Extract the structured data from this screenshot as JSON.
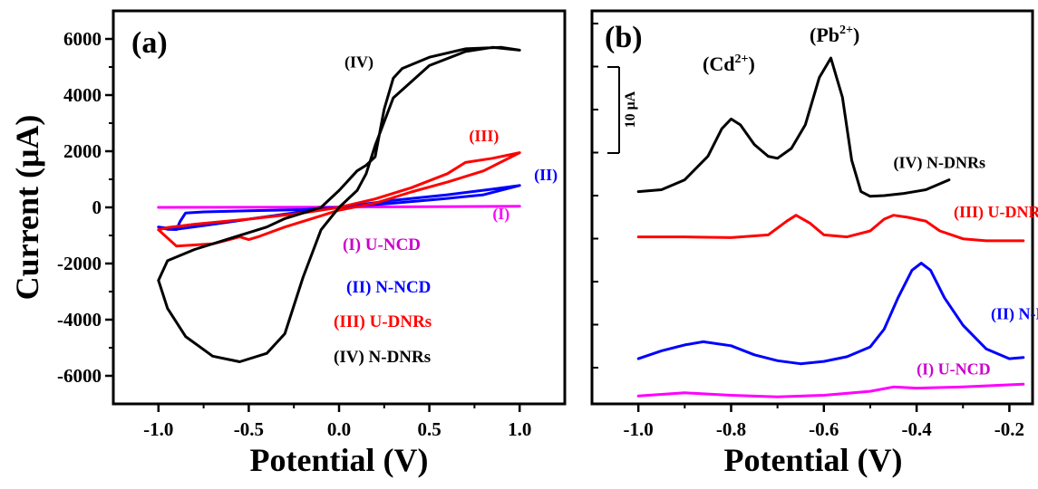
{
  "chart_data": [
    {
      "panel": "(a)",
      "type": "line",
      "xlabel": "Potential (V)",
      "ylabel": "Current (μA)",
      "xlim": [
        -1.25,
        1.25
      ],
      "ylim": [
        -7000,
        7000
      ],
      "xticks": [
        -1.0,
        -0.5,
        0.0,
        0.5,
        1.0
      ],
      "xtick_labels": [
        "-1.0",
        "-0.5",
        "0.0",
        "0.5",
        "1.0"
      ],
      "yticks": [
        -6000,
        -4000,
        -2000,
        0,
        2000,
        4000,
        6000
      ],
      "ytick_labels": [
        "-6000",
        "-4000",
        "-2000",
        "0",
        "2000",
        "4000",
        "6000"
      ],
      "grid": false,
      "legend_position": "bottom-right",
      "series": [
        {
          "name": "(I) U-NCD",
          "color": "#ff00ff",
          "x": [
            -1.0,
            0.0,
            1.0
          ],
          "y": [
            0,
            10,
            40
          ]
        },
        {
          "name": "(II) N-NCD",
          "color": "#0000ff",
          "x": [
            -1.0,
            -0.95,
            -0.9,
            -0.88,
            -0.85,
            -0.75,
            -0.5,
            -0.2,
            0.0,
            0.3,
            0.6,
            0.8,
            1.0,
            0.85,
            0.6,
            0.3,
            0.0,
            -0.2,
            -0.5,
            -0.75,
            -0.9,
            -1.0
          ],
          "y": [
            -700,
            -780,
            -790,
            -500,
            -200,
            -160,
            -120,
            -80,
            0,
            150,
            320,
            450,
            780,
            650,
            450,
            250,
            0,
            -150,
            -420,
            -650,
            -780,
            -700
          ]
        },
        {
          "name": "(III) U-DNRs",
          "color": "#ff0000",
          "x": [
            -1.0,
            -0.95,
            -0.9,
            -0.8,
            -0.5,
            -0.2,
            0.0,
            0.2,
            0.4,
            0.6,
            0.7,
            0.85,
            1.0,
            0.8,
            0.6,
            0.4,
            0.2,
            0.0,
            -0.15,
            -0.3,
            -0.45,
            -0.5,
            -0.55,
            -0.7,
            -0.9,
            -1.0
          ],
          "y": [
            -800,
            -720,
            -680,
            -600,
            -420,
            -200,
            0,
            300,
            700,
            1200,
            1600,
            1750,
            1950,
            1300,
            900,
            550,
            150,
            -100,
            -400,
            -700,
            -1050,
            -1150,
            -1050,
            -1300,
            -1380,
            -800
          ]
        },
        {
          "name": "(IV) N-DNRs",
          "color": "#000000",
          "x": [
            -1.0,
            -0.95,
            -0.85,
            -0.7,
            -0.55,
            -0.4,
            -0.3,
            -0.2,
            -0.1,
            0.0,
            0.1,
            0.15,
            0.2,
            0.3,
            0.5,
            0.7,
            0.85,
            1.0,
            0.9,
            0.7,
            0.5,
            0.35,
            0.3,
            0.25,
            0.2,
            0.15,
            0.1,
            0.0,
            -0.1,
            -0.2,
            -0.3,
            -0.4,
            -0.6,
            -0.8,
            -0.95,
            -1.0
          ],
          "y": [
            -2600,
            -3600,
            -4600,
            -5300,
            -5500,
            -5200,
            -4500,
            -2500,
            -800,
            0,
            600,
            1200,
            2200,
            3900,
            5050,
            5550,
            5700,
            5600,
            5700,
            5650,
            5350,
            4950,
            4600,
            3500,
            1800,
            1500,
            1300,
            600,
            0,
            -200,
            -400,
            -700,
            -1100,
            -1500,
            -1900,
            -2600
          ]
        }
      ],
      "annotations": [
        {
          "text": "(IV)",
          "x": 0.03,
          "y": 4980,
          "color": "#000000"
        },
        {
          "text": "(III)",
          "x": 0.72,
          "y": 2360,
          "color": "#ff0000"
        },
        {
          "text": "(II)",
          "x": 1.08,
          "y": 960,
          "color": "#0000ff"
        },
        {
          "text": "(I)",
          "x": 0.85,
          "y": -420,
          "color": "#ff00ff"
        }
      ],
      "legend": [
        {
          "text": "(I) U-NCD",
          "color": "#cc00cc"
        },
        {
          "text": "(II) N-NCD",
          "color": "#0000ff"
        },
        {
          "text": "(III) U-DNRs",
          "color": "#ff0000"
        },
        {
          "text": "(IV) N-DNRs",
          "color": "#000000"
        }
      ]
    },
    {
      "panel": "(b)",
      "type": "line",
      "xlabel": "Potential (V)",
      "ylabel": "",
      "xlim": [
        -1.1,
        -0.15
      ],
      "ylim": [
        0,
        100
      ],
      "xticks": [
        -1.0,
        -0.8,
        -0.6,
        -0.4,
        -0.2
      ],
      "xtick_labels": [
        "-1.0",
        "-0.8",
        "-0.6",
        "-0.4",
        "-0.2"
      ],
      "ytick_labels": [],
      "grid": false,
      "scale_bar": "10 μA",
      "peaks": [
        "(Cd2+)",
        "(Pb2+)"
      ],
      "series": [
        {
          "name": "(I) U-NCD",
          "color": "#ff00ff",
          "x": [
            -1.0,
            -0.9,
            -0.8,
            -0.7,
            -0.6,
            -0.5,
            -0.45,
            -0.4,
            -0.3,
            -0.17
          ],
          "y": [
            2.0,
            2.8,
            2.2,
            1.8,
            2.2,
            3.2,
            4.3,
            4.0,
            4.3,
            5.0
          ]
        },
        {
          "name": "(II) N-NCD",
          "color": "#0000ff",
          "x": [
            -1.0,
            -0.95,
            -0.9,
            -0.86,
            -0.8,
            -0.75,
            -0.7,
            -0.65,
            -0.6,
            -0.55,
            -0.5,
            -0.47,
            -0.44,
            -0.41,
            -0.39,
            -0.37,
            -0.34,
            -0.3,
            -0.25,
            -0.2,
            -0.17
          ],
          "y": [
            11.5,
            13.5,
            15.0,
            15.8,
            14.8,
            12.5,
            11.0,
            10.2,
            10.8,
            12.0,
            14.5,
            19.0,
            27.0,
            34.0,
            35.8,
            34.0,
            27.0,
            20.0,
            14.0,
            11.5,
            11.8
          ]
        },
        {
          "name": "(III) U-DNRs",
          "color": "#ff0000",
          "x": [
            -1.0,
            -0.9,
            -0.8,
            -0.72,
            -0.68,
            -0.66,
            -0.63,
            -0.6,
            -0.55,
            -0.5,
            -0.47,
            -0.45,
            -0.42,
            -0.38,
            -0.35,
            -0.3,
            -0.25,
            -0.17
          ],
          "y": [
            42.5,
            42.5,
            42.3,
            43.0,
            46.5,
            48.0,
            46.0,
            43.0,
            42.5,
            44.0,
            47.0,
            48.0,
            47.5,
            46.5,
            44.0,
            42.0,
            41.5,
            41.5
          ]
        },
        {
          "name": "(IV) N-DNRs",
          "color": "#000000",
          "x": [
            -1.0,
            -0.95,
            -0.9,
            -0.85,
            -0.82,
            -0.8,
            -0.78,
            -0.75,
            -0.72,
            -0.7,
            -0.67,
            -0.64,
            -0.61,
            -0.585,
            -0.56,
            -0.54,
            -0.52,
            -0.5,
            -0.47,
            -0.43,
            -0.38,
            -0.33
          ],
          "y": [
            54.0,
            54.5,
            57.0,
            63.0,
            70.0,
            72.5,
            71.0,
            66.0,
            63.0,
            62.5,
            65.0,
            71.0,
            83.0,
            88.0,
            78.0,
            62.0,
            54.0,
            52.8,
            53.0,
            53.5,
            54.5,
            57.0
          ]
        }
      ],
      "annotations": [
        {
          "text": "(IV) N-DNRs",
          "x": -0.45,
          "y": 60.0,
          "color": "#000000"
        },
        {
          "text": "(III) U-DNRs",
          "x": -0.32,
          "y": 47.5,
          "color": "#ff0000"
        },
        {
          "text": "(II) N-NCD",
          "x": -0.24,
          "y": 21.5,
          "color": "#0000ff"
        },
        {
          "text": "(I) U-NCD",
          "x": -0.4,
          "y": 7.5,
          "color": "#cc00cc"
        }
      ]
    }
  ],
  "labels": {
    "panel_a": "(a)",
    "panel_b": "(b)",
    "xlabel_a": "Potential (V)",
    "xlabel_b": "Potential (V)",
    "ylabel_a": "Current (μA)",
    "cd_peak": "(Cd",
    "cd_charge": "2+",
    "pb_peak": "(Pb",
    "pb_charge": "2+",
    "close_paren": ")",
    "scale_bar": "10 μA"
  }
}
